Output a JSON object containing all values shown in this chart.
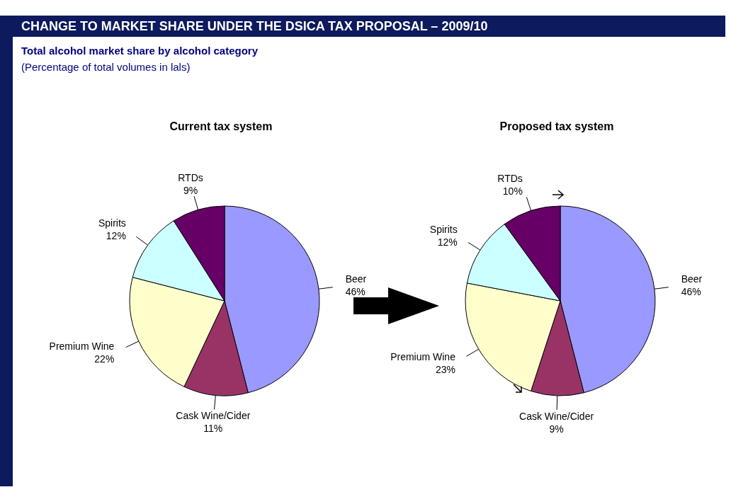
{
  "chart_data": [
    {
      "type": "pie",
      "title": "Current tax system",
      "annotations": [
        "CHANGE TO MARKET SHARE UNDER THE DSICA TAX PROPOSAL – 2009/10",
        "Total alcohol market share by alcohol category",
        "(Percentage of total volumes in lals)"
      ],
      "categories": [
        "Beer",
        "Cask Wine/Cider",
        "Premium Wine",
        "Spirits",
        "RTDs"
      ],
      "values": [
        46,
        11,
        22,
        12,
        9
      ],
      "value_labels": [
        "46%",
        "11%",
        "22%",
        "12%",
        "9%"
      ],
      "colors": [
        "#9999ff",
        "#993366",
        "#ffffcc",
        "#ccffff",
        "#660066"
      ]
    },
    {
      "type": "pie",
      "title": "Proposed tax system",
      "categories": [
        "Beer",
        "Cask Wine/Cider",
        "Premium Wine",
        "Spirits",
        "RTDs"
      ],
      "values": [
        46,
        9,
        23,
        12,
        10
      ],
      "value_labels": [
        "46%",
        "9%",
        "23%",
        "12%",
        "10%"
      ],
      "colors": [
        "#9999ff",
        "#993366",
        "#ffffcc",
        "#ccffff",
        "#660066"
      ]
    }
  ]
}
